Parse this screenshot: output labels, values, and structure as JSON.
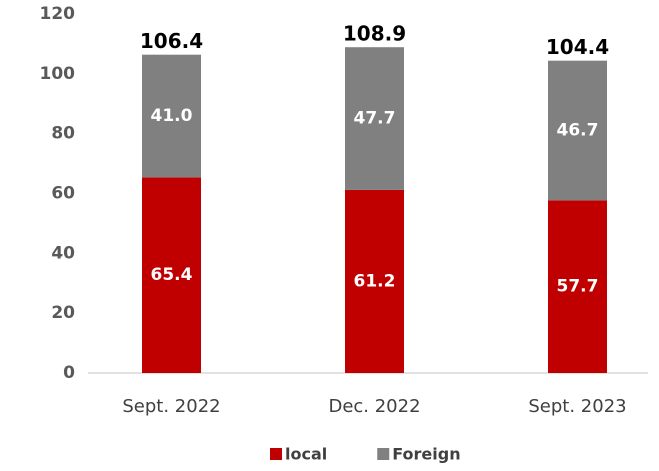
{
  "chart_data": {
    "type": "stacked_bar",
    "categories": [
      "Sept. 2022",
      "Dec. 2022",
      "Sept. 2023"
    ],
    "series": [
      {
        "name": "local",
        "color": "#c00000",
        "values": [
          65.4,
          61.2,
          57.7
        ]
      },
      {
        "name": "Foreign",
        "color": "#808080",
        "values": [
          41.0,
          47.7,
          46.7
        ],
        "value_labels": [
          "41.0",
          "47.7",
          "46.7"
        ]
      }
    ],
    "totals": [
      106.4,
      108.9,
      104.4
    ],
    "ylim": [
      0,
      120
    ],
    "yticks": [
      0,
      20,
      40,
      60,
      80,
      100,
      120
    ],
    "legend": "bottom"
  }
}
